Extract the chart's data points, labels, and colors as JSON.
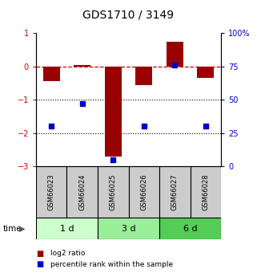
{
  "title": "GDS1710 / 3149",
  "samples": [
    "GSM66023",
    "GSM66024",
    "GSM66025",
    "GSM66026",
    "GSM66027",
    "GSM66028"
  ],
  "log2_ratio": [
    -0.45,
    0.05,
    -2.7,
    -0.55,
    0.75,
    -0.35
  ],
  "percentile_rank": [
    30,
    47,
    5,
    30,
    76,
    30
  ],
  "ylim_left": [
    -3,
    1
  ],
  "yticks_left": [
    -3,
    -2,
    -1,
    0,
    1
  ],
  "ylim_right": [
    0,
    100
  ],
  "yticks_right": [
    0,
    25,
    50,
    75,
    100
  ],
  "dotted_lines": [
    -1,
    -2
  ],
  "bar_color": "#990000",
  "scatter_color": "#0000cc",
  "dashed_line_color": "#cc0000",
  "time_groups": [
    {
      "label": "1 d",
      "indices": [
        0,
        1
      ],
      "color": "#ccffcc"
    },
    {
      "label": "3 d",
      "indices": [
        2,
        3
      ],
      "color": "#99ee99"
    },
    {
      "label": "6 d",
      "indices": [
        4,
        5
      ],
      "color": "#55cc55"
    }
  ],
  "sample_box_color": "#cccccc",
  "legend_items": [
    {
      "label": "log2 ratio",
      "color": "#990000"
    },
    {
      "label": "percentile rank within the sample",
      "color": "#0000cc"
    }
  ],
  "bar_width": 0.55,
  "background_color": "#ffffff"
}
